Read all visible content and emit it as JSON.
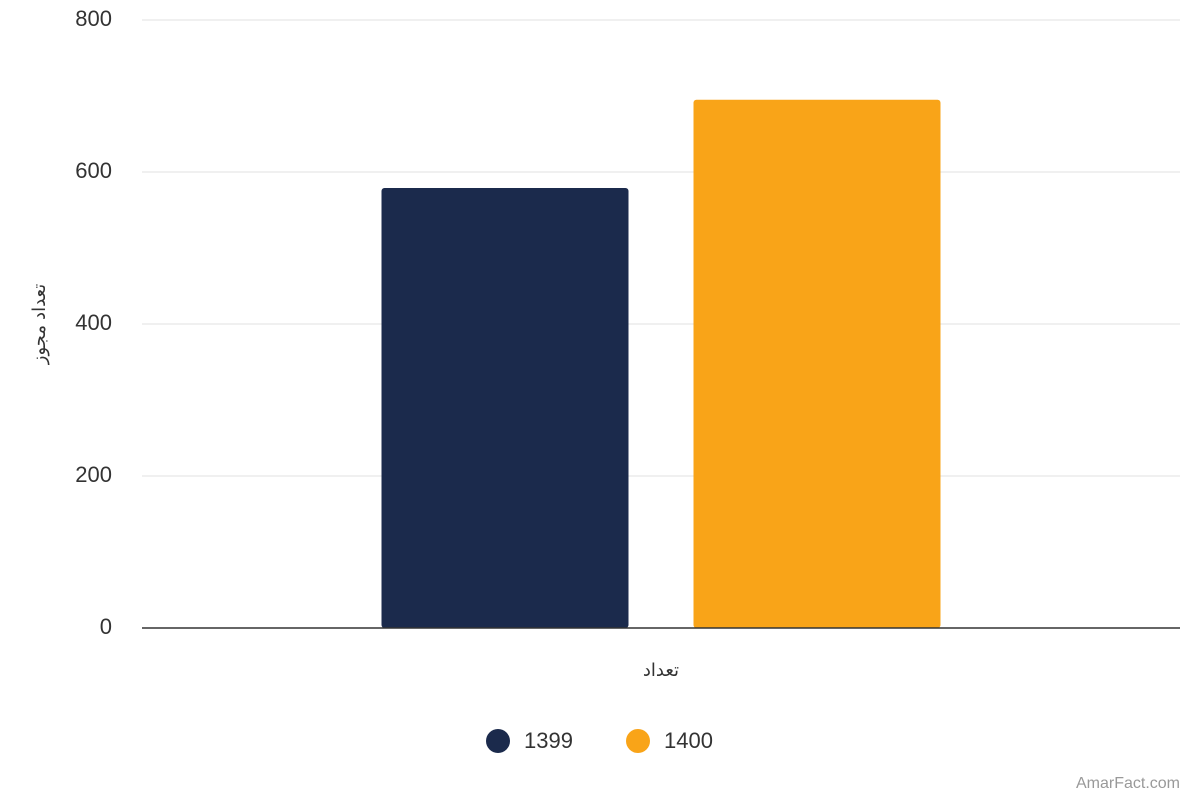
{
  "chart_data": {
    "type": "bar",
    "y_label": "تعداد مجوز",
    "categories": [
      "تعداد"
    ],
    "series": [
      {
        "name": "1399",
        "color": "#1b2a4c",
        "values": [
          579
        ]
      },
      {
        "name": "1400",
        "color": "#f9a418",
        "values": [
          695
        ]
      }
    ],
    "ylim": [
      0,
      800
    ],
    "yticks": [
      0,
      200,
      400,
      600,
      800
    ],
    "grid": true,
    "watermark": "AmarFact.com"
  }
}
